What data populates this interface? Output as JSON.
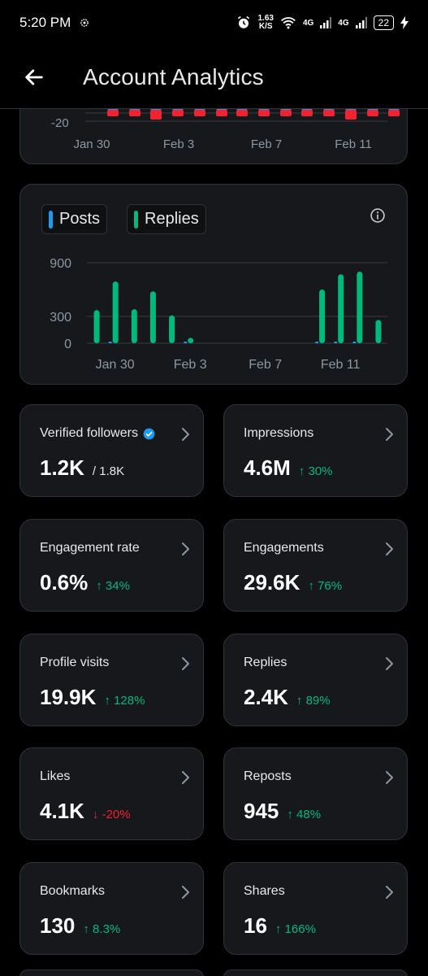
{
  "status": {
    "time": "5:20 PM",
    "speed_value": "1.63",
    "speed_unit": "K/S",
    "net1": "4G",
    "net2": "4G",
    "battery": "22"
  },
  "header": {
    "title": "Account Analytics"
  },
  "top_chart": {
    "y_tick": "-20",
    "x_ticks": [
      "Jan 30",
      "Feb 3",
      "Feb 7",
      "Feb 11"
    ]
  },
  "chart_data": {
    "type": "bar",
    "legend": [
      "Posts",
      "Replies"
    ],
    "colors": {
      "posts": "#1d9bf0",
      "replies": "#00ba7c"
    },
    "y_ticks": [
      900,
      300,
      0
    ],
    "ylim": [
      0,
      900
    ],
    "x_tick_labels": [
      "Jan 30",
      "Feb 3",
      "Feb 7",
      "Feb 11"
    ],
    "days": [
      "Jan 29",
      "Jan 30",
      "Jan 31",
      "Feb 1",
      "Feb 2",
      "Feb 3",
      "Feb 4",
      "Feb 5",
      "Feb 6",
      "Feb 7",
      "Feb 8",
      "Feb 9",
      "Feb 10",
      "Feb 11",
      "Feb 12",
      "Feb 13"
    ],
    "series": [
      {
        "name": "Posts",
        "values": [
          0,
          5,
          0,
          0,
          0,
          4,
          0,
          0,
          0,
          0,
          0,
          0,
          5,
          5,
          5,
          0
        ]
      },
      {
        "name": "Replies",
        "values": [
          370,
          690,
          380,
          580,
          310,
          60,
          0,
          0,
          0,
          0,
          0,
          0,
          600,
          770,
          800,
          260
        ]
      }
    ]
  },
  "stats": [
    {
      "label": "Verified followers",
      "value": "1.2K",
      "sub": "/ 1.8K",
      "verified": true
    },
    {
      "label": "Impressions",
      "value": "4.6M",
      "change": "↑ 30%",
      "dir": "up"
    },
    {
      "label": "Engagement rate",
      "value": "0.6%",
      "change": "↑ 34%",
      "dir": "up"
    },
    {
      "label": "Engagements",
      "value": "29.6K",
      "change": "↑ 76%",
      "dir": "up"
    },
    {
      "label": "Profile visits",
      "value": "19.9K",
      "change": "↑ 128%",
      "dir": "up"
    },
    {
      "label": "Replies",
      "value": "2.4K",
      "change": "↑ 89%",
      "dir": "up"
    },
    {
      "label": "Likes",
      "value": "4.1K",
      "change": "↓ -20%",
      "dir": "down"
    },
    {
      "label": "Reposts",
      "value": "945",
      "change": "↑ 48%",
      "dir": "up"
    },
    {
      "label": "Bookmarks",
      "value": "130",
      "change": "↑ 8.3%",
      "dir": "up"
    },
    {
      "label": "Shares",
      "value": "16",
      "change": "↑ 166%",
      "dir": "up"
    }
  ]
}
